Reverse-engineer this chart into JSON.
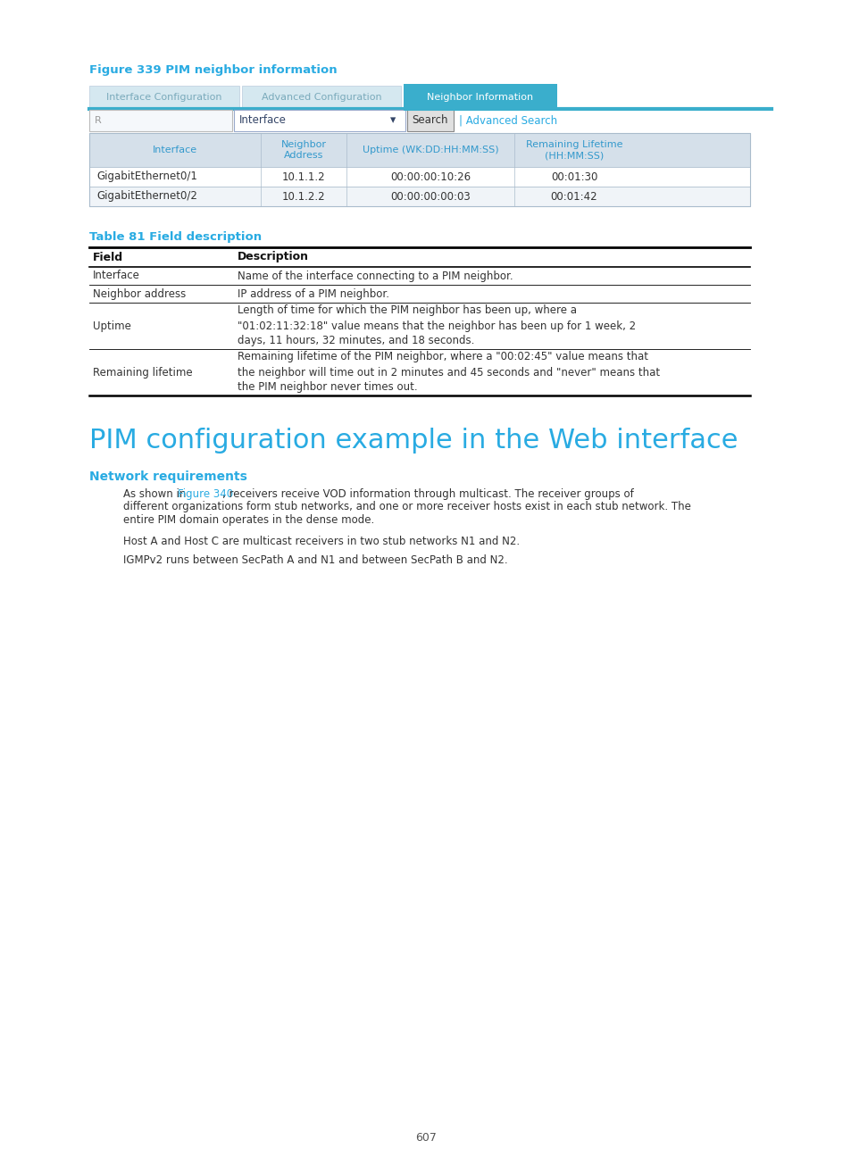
{
  "fig_caption": "Figure 339 PIM neighbor information",
  "tab_caption": "Table 81 Field description",
  "section_title": "PIM configuration example in the Web interface",
  "subsection_title": "Network requirements",
  "tab_tabs": [
    "Interface Configuration",
    "Advanced Configuration",
    "Neighbor Information"
  ],
  "table_headers": [
    "Interface",
    "Neighbor\nAddress",
    "Uptime (WK:DD:HH:MM:SS)",
    "Remaining Lifetime\n(HH:MM:SS)"
  ],
  "table_rows": [
    [
      "GigabitEthernet0/1",
      "10.1.1.2",
      "00:00:00:10:26",
      "00:01:30"
    ],
    [
      "GigabitEthernet0/2",
      "10.1.2.2",
      "00:00:00:00:03",
      "00:01:42"
    ]
  ],
  "field_table_headers": [
    "Field",
    "Description"
  ],
  "field_table_rows": [
    [
      "Interface",
      "Name of the interface connecting to a PIM neighbor."
    ],
    [
      "Neighbor address",
      "IP address of a PIM neighbor."
    ],
    [
      "Uptime",
      "Length of time for which the PIM neighbor has been up, where a\n\"01:02:11:32:18\" value means that the neighbor has been up for 1 week, 2\ndays, 11 hours, 32 minutes, and 18 seconds."
    ],
    [
      "Remaining lifetime",
      "Remaining lifetime of the PIM neighbor, where a \"00:02:45\" value means that\nthe neighbor will time out in 2 minutes and 45 seconds and \"never\" means that\nthe PIM neighbor never times out."
    ]
  ],
  "paragraph1_before": "As shown in ",
  "paragraph1_link": "Figure 340",
  "paragraph1_after": ", receivers receive VOD information through multicast. The receiver groups of\ndifferent organizations form stub networks, and one or more receiver hosts exist in each stub network. The\nentire PIM domain operates in the dense mode.",
  "paragraph2": "Host A and Host C are multicast receivers in two stub networks N1 and N2.",
  "paragraph3": "IGMPv2 runs between SecPath A and N1 and between SecPath B and N2.",
  "page_number": "607",
  "colors": {
    "cyan_title": "#29ABE2",
    "tab_active_bg": "#3AAECC",
    "tab_inactive_bg": "#D5E8F0",
    "tab_inactive_text": "#7AAABB",
    "tab_active_text": "#FFFFFF",
    "tab_bar": "#3AAECC",
    "search_box_bg": "#F0F6FA",
    "search_box_border": "#BBBBBB",
    "dropdown_bg": "#FFFFFF",
    "dropdown_border": "#99AACC",
    "dropdown_text": "#334466",
    "button_bg": "#E0E0E0",
    "button_border": "#888888",
    "button_text": "#333333",
    "link_color": "#29ABE2",
    "tbl_header_bg": "#D5E0EA",
    "tbl_header_text": "#3399CC",
    "tbl_border": "#AABCCC",
    "tbl_row0_bg": "#FFFFFF",
    "tbl_row1_bg": "#F0F4F8",
    "body_text": "#333333",
    "field_header_text": "#000000",
    "line_color": "#000000"
  }
}
